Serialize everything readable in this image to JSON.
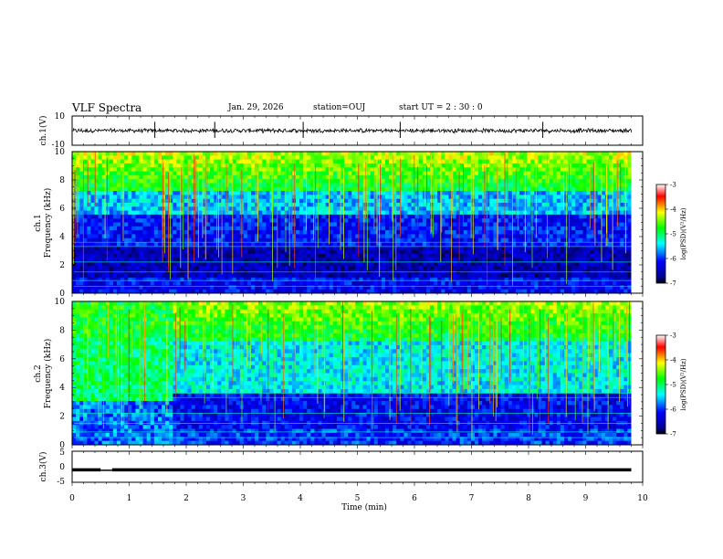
{
  "header": {
    "title": "VLF Spectra",
    "date": "Jan. 29, 2026",
    "station": "station=OUJ",
    "start": "start UT =  2 : 30 : 0"
  },
  "chart_data": [
    {
      "type": "line",
      "panel": "ch1-waveform",
      "ylabel": "ch.1(V)",
      "ylim": [
        -10,
        10
      ],
      "yticks": [
        "10",
        "-10"
      ],
      "xlim": [
        0,
        10
      ],
      "level": 0,
      "color": "#000000"
    },
    {
      "type": "heatmap",
      "panel": "ch1-spectrogram",
      "ylabel": "ch.1\nFrequency (kHz)",
      "ylabel_line1": "ch.1",
      "ylabel_line2": "Frequency (kHz)",
      "ylim": [
        0,
        10
      ],
      "yticks": [
        "0",
        "2",
        "4",
        "6",
        "8",
        "10"
      ],
      "xlim": [
        0,
        9.8
      ],
      "colorbar": {
        "label": "log(PSD)(V²/Hz)",
        "ticks": [
          "-3",
          "-4",
          "-5",
          "-6",
          "-7"
        ],
        "range": [
          -7,
          -3
        ]
      }
    },
    {
      "type": "heatmap",
      "panel": "ch2-spectrogram",
      "ylabel": "ch.2\nFrequency (kHz)",
      "ylabel_line1": "ch.2",
      "ylabel_line2": "Frequency (kHz)",
      "ylim": [
        0,
        10
      ],
      "yticks": [
        "0",
        "2",
        "4",
        "6",
        "8",
        "10"
      ],
      "xlim": [
        0,
        9.8
      ],
      "colorbar": {
        "label": "log(PSD)(V²/Hz)",
        "ticks": [
          "-3",
          "-4",
          "-5",
          "-6",
          "-7"
        ],
        "range": [
          -7,
          -3
        ]
      }
    },
    {
      "type": "line",
      "panel": "ch3-waveform",
      "ylabel": "ch.3(V)",
      "ylim": [
        -5,
        5
      ],
      "yticks": [
        "5",
        "0",
        "-5"
      ],
      "level": -1,
      "gap": [
        0.5,
        0.7
      ],
      "color": "#000000"
    }
  ],
  "xaxis": {
    "label": "Time (min)",
    "ticks": [
      "0",
      "1",
      "2",
      "3",
      "4",
      "5",
      "6",
      "7",
      "8",
      "9",
      "10"
    ],
    "range": [
      0,
      10
    ]
  },
  "colors": {
    "background": "#ffffff",
    "axes": "#000000"
  }
}
